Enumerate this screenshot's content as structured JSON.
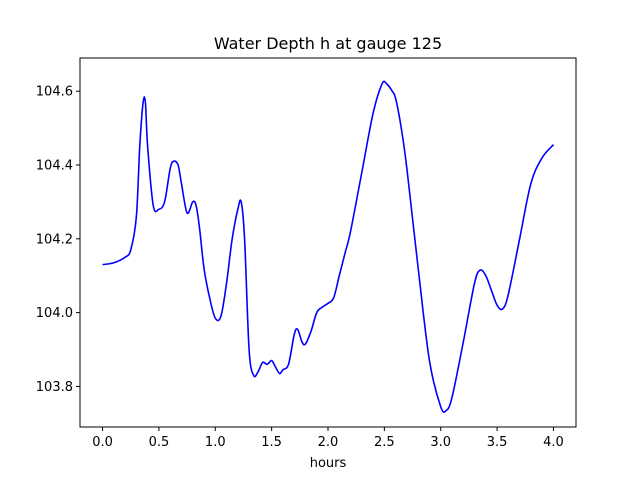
{
  "chart_data": {
    "type": "line",
    "title": "Water Depth h at gauge 125",
    "xlabel": "hours",
    "ylabel": "",
    "xlim": [
      -0.2,
      4.2
    ],
    "ylim": [
      103.69,
      104.69
    ],
    "xticks": [
      0.0,
      0.5,
      1.0,
      1.5,
      2.0,
      2.5,
      3.0,
      3.5,
      4.0
    ],
    "xtick_labels": [
      "0.0",
      "0.5",
      "1.0",
      "1.5",
      "2.0",
      "2.5",
      "3.0",
      "3.5",
      "4.0"
    ],
    "yticks": [
      103.8,
      104.0,
      104.2,
      104.4,
      104.6
    ],
    "ytick_labels": [
      "103.8",
      "104.0",
      "104.2",
      "104.4",
      "104.6"
    ],
    "grid": false,
    "legend": "none",
    "series": [
      {
        "color": "#0000ff",
        "x": [
          0.0,
          0.1,
          0.2,
          0.25,
          0.3,
          0.33,
          0.36,
          0.38,
          0.4,
          0.45,
          0.5,
          0.55,
          0.6,
          0.63,
          0.67,
          0.7,
          0.75,
          0.8,
          0.83,
          0.86,
          0.9,
          0.95,
          1.0,
          1.05,
          1.1,
          1.15,
          1.2,
          1.23,
          1.26,
          1.3,
          1.34,
          1.38,
          1.42,
          1.46,
          1.5,
          1.53,
          1.57,
          1.6,
          1.65,
          1.7,
          1.73,
          1.77,
          1.8,
          1.85,
          1.9,
          1.95,
          2.0,
          2.05,
          2.1,
          2.15,
          2.2,
          2.3,
          2.4,
          2.48,
          2.52,
          2.57,
          2.6,
          2.65,
          2.7,
          2.8,
          2.9,
          3.0,
          3.05,
          3.1,
          3.2,
          3.3,
          3.35,
          3.4,
          3.45,
          3.5,
          3.55,
          3.6,
          3.7,
          3.8,
          3.9,
          4.0
        ],
        "values": [
          104.13,
          104.135,
          104.15,
          104.17,
          104.26,
          104.45,
          104.57,
          104.57,
          104.45,
          104.29,
          104.28,
          104.3,
          104.39,
          104.41,
          104.4,
          104.35,
          104.27,
          104.3,
          104.29,
          104.23,
          104.12,
          104.04,
          103.985,
          103.99,
          104.08,
          104.2,
          104.28,
          104.3,
          104.2,
          103.9,
          103.83,
          103.84,
          103.865,
          103.86,
          103.87,
          103.855,
          103.835,
          103.845,
          103.86,
          103.94,
          103.955,
          103.92,
          103.915,
          103.95,
          104.0,
          104.015,
          104.025,
          104.04,
          104.1,
          104.16,
          104.22,
          104.38,
          104.54,
          104.62,
          104.62,
          104.6,
          104.58,
          104.5,
          104.39,
          104.12,
          103.87,
          103.745,
          103.735,
          103.77,
          103.92,
          104.08,
          104.115,
          104.1,
          104.06,
          104.02,
          104.01,
          104.05,
          104.2,
          104.35,
          104.42,
          104.455
        ]
      }
    ]
  }
}
